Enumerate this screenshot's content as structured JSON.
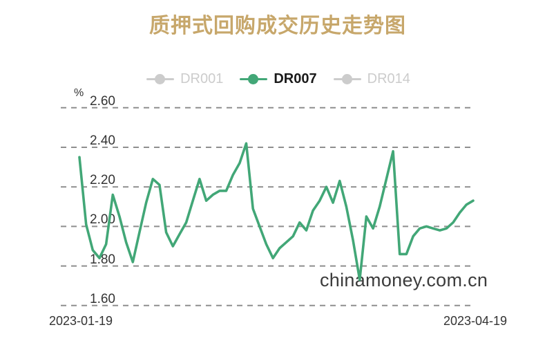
{
  "title": "质押式回购成交历史走势图",
  "watermark": "chinamoney.com.cn",
  "legend": {
    "items": [
      {
        "label": "DR001",
        "active": false
      },
      {
        "label": "DR007",
        "active": true
      },
      {
        "label": "DR014",
        "active": false
      }
    ]
  },
  "y_axis": {
    "unit": "%",
    "ticks": [
      "2.60",
      "2.40",
      "2.20",
      "2.00",
      "1.80",
      "1.60"
    ]
  },
  "x_axis": {
    "start_label": "2023-01-19",
    "end_label": "2023-04-19"
  },
  "colors": {
    "title": "#c7a76b",
    "series_green": "#42a777",
    "legend_inactive": "#cccccc",
    "legend_active_text": "#1a1a1a",
    "gridline": "#8e8e8e",
    "axis_text": "#333333",
    "watermark_text": "#3c3c3c"
  },
  "chart_data": {
    "type": "line",
    "title": "质押式回购成交历史走势图",
    "ylabel": "%",
    "ylim": [
      1.6,
      2.6
    ],
    "y_tick_values": [
      2.6,
      2.4,
      2.2,
      2.0,
      1.8,
      1.6
    ],
    "x_range": [
      "2023-01-19",
      "2023-04-19"
    ],
    "grid": "dashed-horizontal-only",
    "legend_position": "top",
    "series": [
      {
        "name": "DR001",
        "active": false,
        "values": []
      },
      {
        "name": "DR007",
        "active": true,
        "values": [
          2.35,
          2.01,
          1.88,
          1.84,
          1.91,
          2.16,
          2.05,
          1.92,
          1.82,
          1.97,
          2.12,
          2.24,
          2.21,
          1.97,
          1.9,
          1.96,
          2.02,
          2.13,
          2.24,
          2.13,
          2.16,
          2.18,
          2.18,
          2.26,
          2.32,
          2.42,
          2.09,
          2.0,
          1.91,
          1.84,
          1.89,
          1.92,
          1.95,
          2.02,
          1.98,
          2.08,
          2.13,
          2.2,
          2.12,
          2.23,
          2.1,
          1.93,
          1.73,
          2.05,
          1.99,
          2.1,
          2.24,
          2.38,
          1.86,
          1.86,
          1.95,
          1.99,
          2.0,
          1.99,
          1.98,
          1.99,
          2.02,
          2.07,
          2.11,
          2.13
        ]
      },
      {
        "name": "DR014",
        "active": false,
        "values": []
      }
    ]
  }
}
